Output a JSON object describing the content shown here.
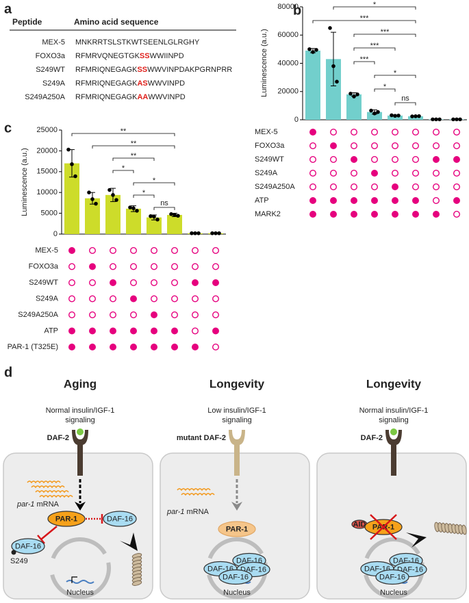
{
  "panel_a": {
    "label": "a",
    "header": [
      "Peptide",
      "Amino acid sequence"
    ],
    "rows": [
      {
        "name": "MEX-5",
        "sequence": [
          "MNKRRTSLSTKWTSEENLGLRGHY"
        ]
      },
      {
        "name": "FOXO3a",
        "sequence": [
          "RFMRVQNEGTGK",
          "SS",
          "WWIINPD"
        ]
      },
      {
        "name": "S249WT",
        "sequence": [
          "RFMRIQNEGAGK",
          "SS",
          "WWVINPDAKPGRNPRR"
        ]
      },
      {
        "name": "S249A",
        "sequence": [
          "RFMRIQNEGAGK",
          "AS",
          "WWVINPD"
        ]
      },
      {
        "name": "S249A250A",
        "sequence": [
          "RFMRIQNEGAGK",
          "AA",
          "WWVINPD"
        ]
      }
    ]
  },
  "chart_data": [
    {
      "type": "bar",
      "panel_label": "b",
      "ylabel": "Luminescence (a.u.)",
      "categories": [
        null,
        null,
        null,
        null,
        null,
        null,
        null,
        null
      ],
      "values": [
        49000,
        43000,
        18000,
        5500,
        3000,
        2500,
        300,
        300
      ],
      "errors": [
        1500,
        19000,
        1200,
        1500,
        400,
        300,
        0,
        0
      ],
      "points": [
        [
          50000,
          48000,
          49500
        ],
        [
          65000,
          38000,
          27000
        ],
        [
          18500,
          16500,
          18000
        ],
        [
          6500,
          4500,
          5500
        ],
        [
          3200,
          2800,
          3000
        ],
        [
          2400,
          2500,
          2600
        ],
        [
          300,
          300,
          300
        ],
        [
          300,
          300,
          300
        ]
      ],
      "color": "#72cfcc",
      "ylim": [
        0,
        80000
      ],
      "yticks": [
        0,
        20000,
        40000,
        60000,
        80000
      ],
      "brackets": [
        {
          "from": 1,
          "to": 5,
          "label": "*"
        },
        {
          "from": 0,
          "to": 5,
          "label": "***"
        },
        {
          "from": 2,
          "to": 5,
          "label": "***"
        },
        {
          "from": 2,
          "to": 4,
          "label": "***"
        },
        {
          "from": 2,
          "to": 3,
          "label": "***"
        },
        {
          "from": 3,
          "to": 5,
          "label": "*"
        },
        {
          "from": 3,
          "to": 4,
          "label": "*"
        },
        {
          "from": 4,
          "to": 5,
          "label": "ns"
        }
      ],
      "matrix_color": "#e6007e",
      "matrix": [
        {
          "label": "MEX-5",
          "filled": [
            true,
            false,
            false,
            false,
            false,
            false,
            false,
            false
          ]
        },
        {
          "label": "FOXO3a",
          "filled": [
            false,
            true,
            false,
            false,
            false,
            false,
            false,
            false
          ]
        },
        {
          "label": "S249WT",
          "filled": [
            false,
            false,
            true,
            false,
            false,
            false,
            true,
            true
          ]
        },
        {
          "label": "S249A",
          "filled": [
            false,
            false,
            false,
            true,
            false,
            false,
            false,
            false
          ]
        },
        {
          "label": "S249A250A",
          "filled": [
            false,
            false,
            false,
            false,
            true,
            false,
            false,
            false
          ]
        },
        {
          "label": "ATP",
          "filled": [
            true,
            true,
            true,
            true,
            true,
            true,
            false,
            true
          ]
        },
        {
          "label": "MARK2",
          "filled": [
            true,
            true,
            true,
            true,
            true,
            true,
            true,
            false
          ]
        }
      ]
    },
    {
      "type": "bar",
      "panel_label": "c",
      "ylabel": "Luminescence (a.u.)",
      "categories": [
        null,
        null,
        null,
        null,
        null,
        null,
        null,
        null
      ],
      "values": [
        17000,
        8600,
        9400,
        6100,
        4000,
        4600,
        200,
        200
      ],
      "errors": [
        3300,
        1400,
        1600,
        700,
        600,
        400,
        0,
        0
      ],
      "points": [
        [
          20300,
          16800,
          13900
        ],
        [
          10000,
          8400,
          7300
        ],
        [
          10600,
          9400,
          8200
        ],
        [
          6400,
          6200,
          5600
        ],
        [
          4300,
          4200,
          3500
        ],
        [
          4800,
          4600,
          4400
        ],
        [
          200,
          200,
          200
        ],
        [
          200,
          200,
          200
        ]
      ],
      "color": "#cddc2a",
      "ylim": [
        0,
        25000
      ],
      "yticks": [
        0,
        5000,
        10000,
        15000,
        20000,
        25000
      ],
      "brackets": [
        {
          "from": 0,
          "to": 5,
          "label": "**"
        },
        {
          "from": 1,
          "to": 5,
          "label": "**"
        },
        {
          "from": 2,
          "to": 4,
          "label": "**"
        },
        {
          "from": 2,
          "to": 3,
          "label": "*"
        },
        {
          "from": 3,
          "to": 5,
          "label": "*"
        },
        {
          "from": 3,
          "to": 4,
          "label": "*"
        },
        {
          "from": 4,
          "to": 5,
          "label": "ns"
        }
      ],
      "matrix_color": "#e6007e",
      "matrix": [
        {
          "label": "MEX-5",
          "filled": [
            true,
            false,
            false,
            false,
            false,
            false,
            false,
            false
          ]
        },
        {
          "label": "FOXO3a",
          "filled": [
            false,
            true,
            false,
            false,
            false,
            false,
            false,
            false
          ]
        },
        {
          "label": "S249WT",
          "filled": [
            false,
            false,
            true,
            false,
            false,
            false,
            true,
            true
          ]
        },
        {
          "label": "S249A",
          "filled": [
            false,
            false,
            false,
            true,
            false,
            false,
            false,
            false
          ]
        },
        {
          "label": "S249A250A",
          "filled": [
            false,
            false,
            false,
            false,
            true,
            false,
            false,
            false
          ]
        },
        {
          "label": "ATP",
          "filled": [
            true,
            true,
            true,
            true,
            true,
            true,
            false,
            true
          ]
        },
        {
          "label": "PAR-1 (T325E)",
          "filled": [
            true,
            true,
            true,
            true,
            true,
            true,
            true,
            false
          ]
        }
      ]
    }
  ],
  "panel_d": {
    "label": "d",
    "cells": [
      {
        "title": "Aging",
        "signal": [
          "Normal insulin/IGF-1",
          "signaling"
        ],
        "receptor": "DAF-2",
        "mrna": [
          "par-1",
          "mRNA"
        ],
        "kinase": "PAR-1",
        "daf16": [
          "DAF-16",
          "DAF-16"
        ],
        "site": "S249",
        "nucleus": "Nucleus"
      },
      {
        "title": "Longevity",
        "signal": [
          "Low insulin/IGF-1",
          "signaling"
        ],
        "receptor": "mutant DAF-2",
        "mrna": [
          "par-1",
          "mRNA"
        ],
        "kinase": "PAR-1",
        "daf16": [
          "DAF-16",
          "DAF-16",
          "DAF-16",
          "DAF-16"
        ],
        "nucleus": "Nucleus"
      },
      {
        "title": "Longevity",
        "signal": [
          "Normal insulin/IGF-1",
          "signaling"
        ],
        "receptor": "DAF-2",
        "degron": "AID",
        "kinase": "PAR-1",
        "daf16": [
          "DAF-16",
          "DAF-16",
          "DAF-16",
          "DAF-16"
        ],
        "nucleus": "Nucleus"
      }
    ]
  }
}
